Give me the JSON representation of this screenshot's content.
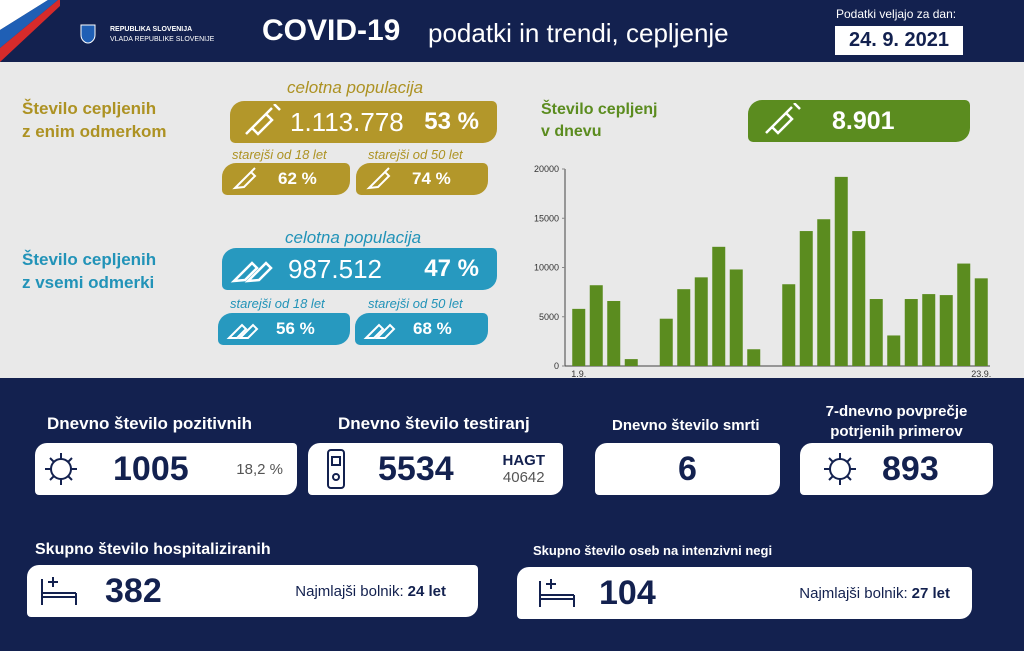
{
  "header": {
    "gov_line1": "REPUBLIKA SLOVENIJA",
    "gov_line2": "VLADA REPUBLIKE SLOVENIJE",
    "title": "COVID-19",
    "subtitle": "podatki in trendi, cepljenje",
    "date_label": "Podatki veljajo za dan:",
    "date": "24. 9. 2021"
  },
  "vaccination": [
    {
      "label_line1": "Število cepljenih",
      "label_line2": "z enim odmerkom",
      "total_caption": "celotna populacija",
      "total": "1.113.778",
      "total_pct": "53 %",
      "groups": [
        {
          "caption": "starejši od 18 let",
          "pct": "62 %"
        },
        {
          "caption": "starejši od 50 let",
          "pct": "74 %"
        }
      ]
    },
    {
      "label_line1": "Število cepljenih",
      "label_line2": "z vsemi odmerki",
      "total_caption": "celotna populacija",
      "total": "987.512",
      "total_pct": "47 %",
      "groups": [
        {
          "caption": "starejši od 18 let",
          "pct": "56 %"
        },
        {
          "caption": "starejši od 50 let",
          "pct": "68 %"
        }
      ]
    }
  ],
  "daily_vaccinations": {
    "label_line1": "Število cepljenj",
    "label_line2": "v dnevu",
    "value": "8.901"
  },
  "chart_data": {
    "type": "bar",
    "categories": [
      "1.9.",
      null,
      null,
      null,
      null,
      null,
      null,
      null,
      null,
      null,
      null,
      null,
      null,
      null,
      null,
      null,
      null,
      null,
      null,
      null,
      null,
      null,
      null,
      "23.9."
    ],
    "values": [
      5800,
      8200,
      6600,
      700,
      0,
      4800,
      7800,
      9000,
      12100,
      9800,
      1700,
      0,
      8300,
      13700,
      14900,
      19200,
      13700,
      6800,
      3100,
      6800,
      7300,
      7200,
      10400,
      8900
    ],
    "color": "#5b8c1f",
    "ylim": [
      0,
      20000
    ],
    "yticks": [
      0,
      5000,
      10000,
      15000,
      20000
    ],
    "grid": false
  },
  "stats": [
    {
      "title": "Dnevno število pozitivnih",
      "value": "1005",
      "extra": "18,2 %"
    },
    {
      "title": "Dnevno število testiranj",
      "value": "5534",
      "extra_label": "HAGT",
      "extra": "40642"
    },
    {
      "title": "Dnevno število smrti",
      "value": "6"
    },
    {
      "title_line1": "7-dnevno povprečje",
      "title_line2": "potrjenih primerov",
      "value": "893"
    }
  ],
  "hospital": [
    {
      "title": "Skupno število hospitaliziranih",
      "value": "382",
      "youngest_label": "Najmlajši bolnik:",
      "youngest": "24 let"
    },
    {
      "title": "Skupno število oseb na intenzivni negi",
      "value": "104",
      "youngest_label": "Najmlajši bolnik:",
      "youngest": "27 let"
    }
  ]
}
